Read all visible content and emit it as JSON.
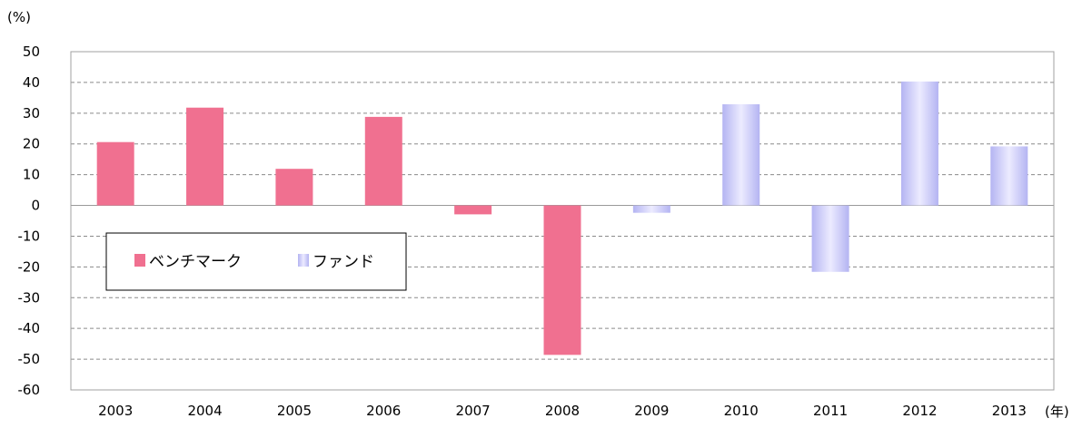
{
  "chart_data": {
    "type": "bar",
    "categories": [
      "2003",
      "2004",
      "2005",
      "2006",
      "2007",
      "2008",
      "2009",
      "2010",
      "2011",
      "2012",
      "2013"
    ],
    "series": [
      {
        "name": "ベンチマーク",
        "values": [
          20.6,
          31.8,
          11.9,
          28.8,
          -2.9,
          -48.6,
          null,
          null,
          null,
          null,
          null
        ],
        "color": "#f07090"
      },
      {
        "name": "ファンド",
        "values": [
          null,
          null,
          null,
          null,
          null,
          null,
          -2.4,
          32.9,
          -21.6,
          40.3,
          19.2
        ],
        "color": "#b4b4f2",
        "color_light": "#ecebff"
      }
    ],
    "ylabel_unit": "(%)",
    "xlabel_unit": "(年)",
    "ylim": [
      -60,
      50
    ],
    "yticks": [
      50,
      40,
      30,
      20,
      10,
      0,
      -10,
      -20,
      -30,
      -40,
      -50,
      -60
    ],
    "grid": true,
    "legend_position": "left"
  }
}
